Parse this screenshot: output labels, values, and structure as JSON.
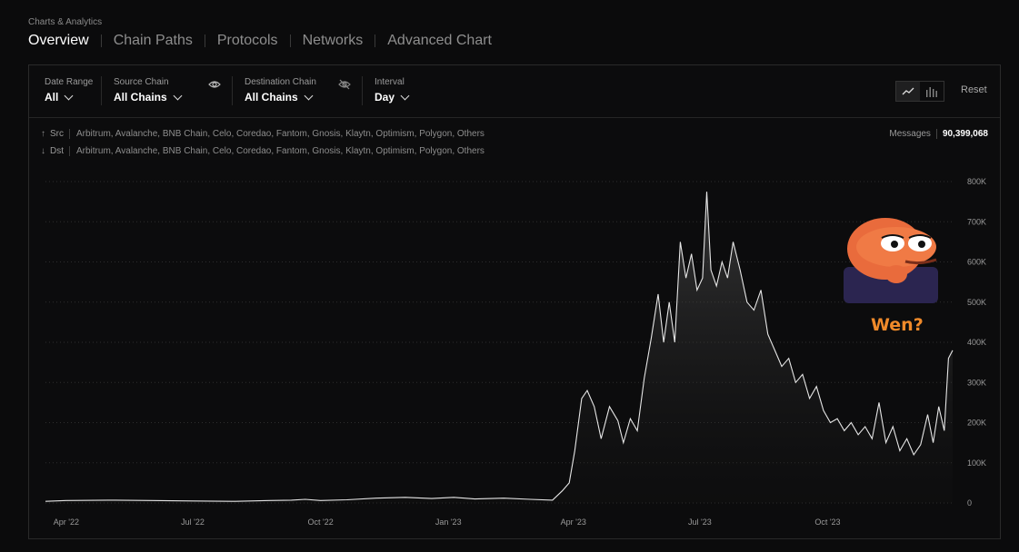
{
  "breadcrumb": "Charts & Analytics",
  "tabs": [
    {
      "label": "Overview"
    },
    {
      "label": "Chain Paths"
    },
    {
      "label": "Protocols"
    },
    {
      "label": "Networks"
    },
    {
      "label": "Advanced Chart"
    }
  ],
  "filters": {
    "date_range": {
      "label": "Date Range",
      "value": "All"
    },
    "source_chain": {
      "label": "Source Chain",
      "value": "All Chains"
    },
    "destination_chain": {
      "label": "Destination Chain",
      "value": "All Chains"
    },
    "interval": {
      "label": "Interval",
      "value": "Day"
    }
  },
  "controls": {
    "line_chart_icon": "line-chart-icon",
    "bar_chart_icon": "bar-chart-icon",
    "reset_label": "Reset"
  },
  "route": {
    "src_label": "Src",
    "src_chains": "Arbitrum, Avalanche, BNB Chain, Celo, Coredao, Fantom, Gnosis, Klaytn, Optimism, Polygon, Others",
    "dst_label": "Dst",
    "dst_chains": "Arbitrum, Avalanche, BNB Chain, Celo, Coredao, Fantom, Gnosis, Klaytn, Optimism, Polygon, Others"
  },
  "messages": {
    "label": "Messages",
    "value": "90,399,068"
  },
  "meme": {
    "caption": "Wen?"
  },
  "colors": {
    "background": "#0b0b0c",
    "line": "#e6e6e6",
    "accent_meme": "#f08a2a"
  },
  "chart_data": {
    "type": "area",
    "ylim": [
      0,
      800000
    ],
    "y_ticks": [
      "0",
      "100K",
      "200K",
      "300K",
      "400K",
      "500K",
      "600K",
      "700K",
      "800K"
    ],
    "y_tick_values": [
      0,
      100000,
      200000,
      300000,
      400000,
      500000,
      600000,
      700000,
      800000
    ],
    "x_ticks": [
      "Apr '22",
      "Jul '22",
      "Oct '22",
      "Jan '23",
      "Apr '23",
      "Jul '23",
      "Oct '23"
    ],
    "x_tick_dates": [
      "2022-04-01",
      "2022-07-01",
      "2022-10-01",
      "2023-01-01",
      "2023-04-01",
      "2023-07-01",
      "2023-10-01"
    ],
    "x_range": [
      "2022-03-17",
      "2023-12-30"
    ],
    "grid": true,
    "series": [
      {
        "values": [
          [
            "2022-03-17",
            4000
          ],
          [
            "2022-04-01",
            6000
          ],
          [
            "2022-05-01",
            7000
          ],
          [
            "2022-06-01",
            6000
          ],
          [
            "2022-07-01",
            5000
          ],
          [
            "2022-08-01",
            4000
          ],
          [
            "2022-08-25",
            6000
          ],
          [
            "2022-09-10",
            7000
          ],
          [
            "2022-09-20",
            9000
          ],
          [
            "2022-10-01",
            6000
          ],
          [
            "2022-10-20",
            8000
          ],
          [
            "2022-11-10",
            12000
          ],
          [
            "2022-12-01",
            14000
          ],
          [
            "2022-12-20",
            11000
          ],
          [
            "2023-01-05",
            14000
          ],
          [
            "2023-01-20",
            10000
          ],
          [
            "2023-02-10",
            12000
          ],
          [
            "2023-03-01",
            9000
          ],
          [
            "2023-03-17",
            7000
          ],
          [
            "2023-03-24",
            30000
          ],
          [
            "2023-03-29",
            50000
          ],
          [
            "2023-04-02",
            130000
          ],
          [
            "2023-04-07",
            260000
          ],
          [
            "2023-04-11",
            280000
          ],
          [
            "2023-04-16",
            240000
          ],
          [
            "2023-04-21",
            160000
          ],
          [
            "2023-04-27",
            240000
          ],
          [
            "2023-05-03",
            205000
          ],
          [
            "2023-05-07",
            150000
          ],
          [
            "2023-05-12",
            210000
          ],
          [
            "2023-05-17",
            180000
          ],
          [
            "2023-05-22",
            310000
          ],
          [
            "2023-05-27",
            410000
          ],
          [
            "2023-06-01",
            520000
          ],
          [
            "2023-06-05",
            400000
          ],
          [
            "2023-06-09",
            500000
          ],
          [
            "2023-06-13",
            400000
          ],
          [
            "2023-06-17",
            650000
          ],
          [
            "2023-06-21",
            560000
          ],
          [
            "2023-06-25",
            620000
          ],
          [
            "2023-06-29",
            530000
          ],
          [
            "2023-07-03",
            560000
          ],
          [
            "2023-07-06",
            775000
          ],
          [
            "2023-07-09",
            580000
          ],
          [
            "2023-07-13",
            540000
          ],
          [
            "2023-07-17",
            600000
          ],
          [
            "2023-07-21",
            560000
          ],
          [
            "2023-07-25",
            650000
          ],
          [
            "2023-07-30",
            580000
          ],
          [
            "2023-08-04",
            500000
          ],
          [
            "2023-08-09",
            480000
          ],
          [
            "2023-08-14",
            530000
          ],
          [
            "2023-08-19",
            420000
          ],
          [
            "2023-08-24",
            380000
          ],
          [
            "2023-08-29",
            340000
          ],
          [
            "2023-09-03",
            360000
          ],
          [
            "2023-09-08",
            300000
          ],
          [
            "2023-09-13",
            320000
          ],
          [
            "2023-09-18",
            260000
          ],
          [
            "2023-09-23",
            290000
          ],
          [
            "2023-09-28",
            230000
          ],
          [
            "2023-10-03",
            200000
          ],
          [
            "2023-10-08",
            210000
          ],
          [
            "2023-10-13",
            180000
          ],
          [
            "2023-10-18",
            200000
          ],
          [
            "2023-10-23",
            170000
          ],
          [
            "2023-10-28",
            190000
          ],
          [
            "2023-11-02",
            160000
          ],
          [
            "2023-11-07",
            250000
          ],
          [
            "2023-11-12",
            150000
          ],
          [
            "2023-11-17",
            190000
          ],
          [
            "2023-11-22",
            130000
          ],
          [
            "2023-11-27",
            160000
          ],
          [
            "2023-12-02",
            120000
          ],
          [
            "2023-12-07",
            145000
          ],
          [
            "2023-12-12",
            220000
          ],
          [
            "2023-12-16",
            150000
          ],
          [
            "2023-12-20",
            240000
          ],
          [
            "2023-12-24",
            180000
          ],
          [
            "2023-12-27",
            360000
          ],
          [
            "2023-12-30",
            380000
          ]
        ]
      }
    ]
  }
}
